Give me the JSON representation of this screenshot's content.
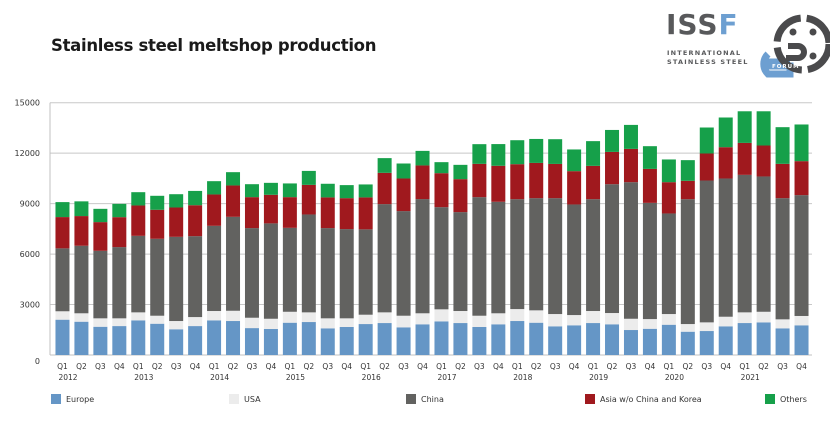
{
  "page": {
    "title": "Stainless steel meltshop production"
  },
  "logo": {
    "wordmark": "ISSF",
    "line1": "INTERNATIONAL",
    "line2": "STAINLESS STEEL",
    "badge": "FORUM"
  },
  "colors": {
    "Europe": "#6596c6",
    "USA": "#ececec",
    "China": "#626260",
    "Asia w/o China and Korea": "#a0191e",
    "Others": "#16a04a",
    "grid": "#c8c8c8",
    "axis": "#c0c0c0"
  },
  "chart_data": {
    "type": "bar",
    "stacked": true,
    "title": "Stainless steel meltshop production",
    "xlabel": "",
    "ylabel": "",
    "ylim": [
      0,
      15000
    ],
    "yticks": [
      0,
      3000,
      6000,
      9000,
      12000,
      15000
    ],
    "grid": true,
    "legend_position": "bottom",
    "categories": [
      "Q1 2012",
      "Q2 2012",
      "Q3 2012",
      "Q4 2012",
      "Q1 2013",
      "Q2 2013",
      "Q3 2013",
      "Q4 2013",
      "Q1 2014",
      "Q2 2014",
      "Q3 2014",
      "Q4 2014",
      "Q1 2015",
      "Q2 2015",
      "Q3 2015",
      "Q4 2015",
      "Q1 2016",
      "Q2 2016",
      "Q3 2016",
      "Q4 2016",
      "Q1 2017",
      "Q2 2017",
      "Q3 2017",
      "Q4 2017",
      "Q1 2018",
      "Q2 2018",
      "Q3 2018",
      "Q4 2018",
      "Q1 2019",
      "Q2 2019",
      "Q3 2019",
      "Q4 2019",
      "Q1 2020",
      "Q2 2020",
      "Q3 2020",
      "Q4 2020",
      "Q1 2021",
      "Q2 2021",
      "Q3 2021",
      "Q4 2021"
    ],
    "quarter_labels": [
      "Q1",
      "Q2",
      "Q3",
      "Q4",
      "Q1",
      "Q2",
      "Q3",
      "Q4",
      "Q1",
      "Q2",
      "Q3",
      "Q4",
      "Q1",
      "Q2",
      "Q3",
      "Q4",
      "Q1",
      "Q2",
      "Q3",
      "Q4",
      "Q1",
      "Q2",
      "Q3",
      "Q4",
      "Q1",
      "Q2",
      "Q3",
      "Q4",
      "Q1",
      "Q2",
      "Q3",
      "Q4",
      "Q1",
      "Q2",
      "Q3",
      "Q4",
      "Q1",
      "Q2",
      "Q3",
      "Q4"
    ],
    "year_labels": [
      "2012",
      "2013",
      "2014",
      "2015",
      "2016",
      "2017",
      "2018",
      "2019",
      "2020",
      "2021"
    ],
    "series": [
      {
        "name": "Europe",
        "values": [
          2100,
          1980,
          1680,
          1720,
          2060,
          1860,
          1530,
          1720,
          2060,
          2020,
          1600,
          1545,
          1920,
          1960,
          1585,
          1665,
          1840,
          1900,
          1645,
          1825,
          2000,
          1900,
          1665,
          1825,
          2020,
          1920,
          1705,
          1765,
          1900,
          1825,
          1485,
          1560,
          1800,
          1385,
          1425,
          1705,
          1900,
          1940,
          1585,
          1765
        ]
      },
      {
        "name": "USA",
        "values": [
          500,
          500,
          500,
          460,
          475,
          475,
          490,
          535,
          555,
          610,
          615,
          610,
          650,
          575,
          595,
          515,
          555,
          635,
          690,
          655,
          715,
          715,
          670,
          655,
          710,
          735,
          730,
          610,
          715,
          670,
          670,
          575,
          635,
          455,
          515,
          570,
          635,
          630,
          535,
          555
        ]
      },
      {
        "name": "China",
        "values": [
          3740,
          4015,
          4015,
          4235,
          4550,
          4575,
          5005,
          4810,
          5065,
          5585,
          5330,
          5670,
          4990,
          5820,
          5365,
          5305,
          5075,
          6435,
          6220,
          6790,
          6075,
          5880,
          7050,
          6630,
          6535,
          6670,
          6890,
          6575,
          6650,
          7660,
          8120,
          6910,
          5980,
          7425,
          8435,
          8220,
          8175,
          8045,
          7205,
          7185
        ]
      },
      {
        "name": "Asia w/o China and Korea",
        "values": [
          1860,
          1765,
          1705,
          1780,
          1805,
          1725,
          1745,
          1840,
          1865,
          1865,
          1840,
          1700,
          1825,
          1760,
          1825,
          1840,
          1900,
          1860,
          1940,
          2000,
          2020,
          1960,
          1980,
          2140,
          2080,
          2095,
          2035,
          1980,
          1980,
          1920,
          1980,
          2020,
          1860,
          1090,
          1605,
          1860,
          1900,
          1840,
          2040,
          2020
        ]
      },
      {
        "name": "Others",
        "values": [
          890,
          875,
          790,
          790,
          790,
          830,
          790,
          850,
          790,
          790,
          770,
          710,
          815,
          830,
          810,
          775,
          770,
          875,
          890,
          865,
          655,
          850,
          1170,
          1290,
          1425,
          1425,
          1470,
          1290,
          1470,
          1305,
          1425,
          1350,
          1350,
          1230,
          1545,
          1765,
          1880,
          2035,
          2180,
          2180
        ]
      }
    ]
  },
  "legend": [
    {
      "label": "Europe"
    },
    {
      "label": "USA"
    },
    {
      "label": "China"
    },
    {
      "label": "Asia w/o China and Korea"
    },
    {
      "label": "Others"
    }
  ]
}
